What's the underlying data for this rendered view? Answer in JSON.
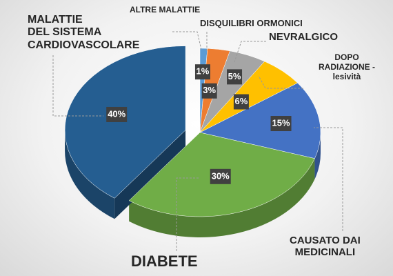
{
  "chart_data": {
    "type": "pie3d",
    "categories": [
      "ALTRE MALATTIE",
      "DISQUILIBRI ORMONICI",
      "NEVRALGICO",
      "DOPO\nRADIAZIONE -\nlesività",
      "CAUSATO DAI\nMEDICINALI",
      "DIABETE",
      "MALATTIE\nDEL SISTEMA\nCARDIOVASCOLARE"
    ],
    "values": [
      1,
      3,
      5,
      6,
      15,
      30,
      40
    ],
    "value_labels": [
      "1%",
      "3%",
      "5%",
      "6%",
      "15%",
      "30%",
      "40%"
    ],
    "colors": [
      "#5b9bd5",
      "#ed7d31",
      "#a5a5a5",
      "#ffc000",
      "#4472c4",
      "#70ad47",
      "#255e91"
    ],
    "exploded": [
      false,
      false,
      false,
      false,
      false,
      false,
      true
    ]
  }
}
